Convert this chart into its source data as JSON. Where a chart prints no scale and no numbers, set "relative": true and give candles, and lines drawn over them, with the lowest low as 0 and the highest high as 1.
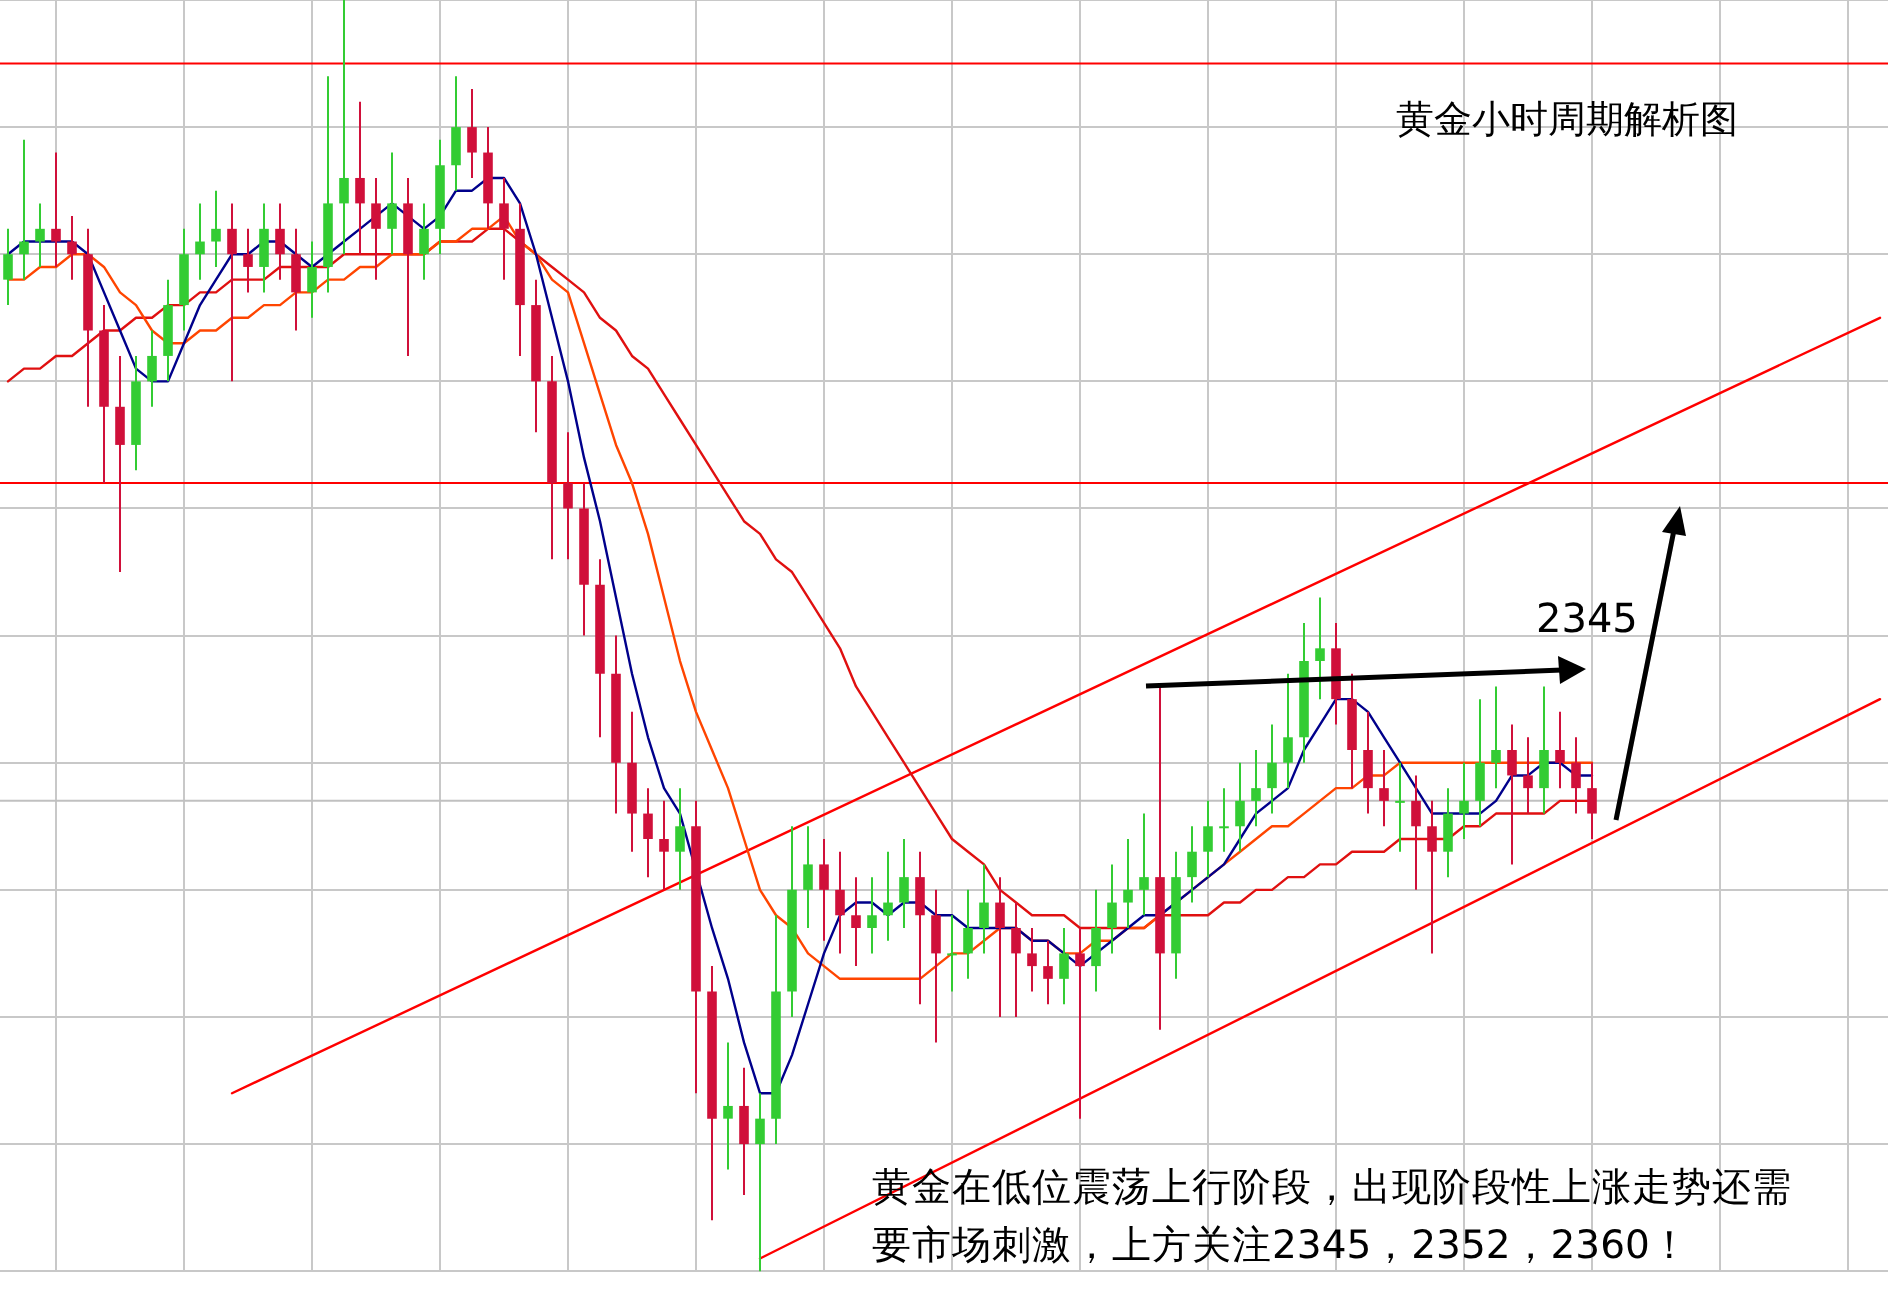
{
  "chart_data": {
    "type": "candlestick",
    "title": "黄金小时周期解析图",
    "relative": true,
    "grid": true,
    "legend": false,
    "marker": "none",
    "annotations": [
      "2345",
      "黄金在低位震荡上行阶段，出现阶段性上涨走势还需要市场刺激，上方关注2345，2352，2360！"
    ],
    "categories": [
      null,
      null,
      null,
      null,
      null,
      null,
      null,
      null,
      null,
      null,
      null,
      null,
      null,
      null,
      null,
      null,
      null,
      null,
      null,
      null,
      null,
      null,
      null,
      null,
      null,
      null,
      null,
      null,
      null,
      null,
      null,
      null,
      null,
      null,
      null,
      null,
      null,
      null,
      null,
      null,
      null,
      null,
      null,
      null,
      null,
      null,
      null,
      null,
      null,
      null,
      null,
      null,
      null,
      null,
      null,
      null,
      null,
      null,
      null,
      null,
      null,
      null,
      null,
      null,
      null,
      null,
      null,
      null,
      null,
      null,
      null,
      null,
      null,
      null,
      null,
      null,
      null,
      null,
      null,
      null,
      null,
      null,
      null,
      null,
      null,
      null,
      null,
      null,
      null,
      null,
      null,
      null,
      null,
      null,
      null,
      null,
      null,
      null,
      null,
      null,
      null,
      null,
      null,
      null,
      null,
      null,
      null,
      null,
      null,
      null,
      null,
      null,
      null,
      null,
      null,
      null,
      null,
      null
    ],
    "ohlc": [
      [
        0.78,
        0.82,
        0.76,
        0.8
      ],
      [
        0.8,
        0.89,
        0.78,
        0.81
      ],
      [
        0.81,
        0.84,
        0.79,
        0.82
      ],
      [
        0.82,
        0.88,
        0.79,
        0.81
      ],
      [
        0.81,
        0.83,
        0.78,
        0.8
      ],
      [
        0.8,
        0.82,
        0.68,
        0.74
      ],
      [
        0.74,
        0.76,
        0.62,
        0.68
      ],
      [
        0.68,
        0.72,
        0.55,
        0.65
      ],
      [
        0.65,
        0.72,
        0.63,
        0.7
      ],
      [
        0.7,
        0.74,
        0.68,
        0.72
      ],
      [
        0.72,
        0.78,
        0.7,
        0.76
      ],
      [
        0.76,
        0.82,
        0.74,
        0.8
      ],
      [
        0.8,
        0.84,
        0.78,
        0.81
      ],
      [
        0.81,
        0.85,
        0.79,
        0.82
      ],
      [
        0.82,
        0.84,
        0.7,
        0.8
      ],
      [
        0.8,
        0.82,
        0.77,
        0.79
      ],
      [
        0.79,
        0.84,
        0.77,
        0.82
      ],
      [
        0.82,
        0.84,
        0.78,
        0.8
      ],
      [
        0.8,
        0.82,
        0.74,
        0.77
      ],
      [
        0.77,
        0.81,
        0.75,
        0.79
      ],
      [
        0.79,
        0.94,
        0.77,
        0.84
      ],
      [
        0.84,
        1.0,
        0.8,
        0.86
      ],
      [
        0.86,
        0.92,
        0.8,
        0.84
      ],
      [
        0.84,
        0.86,
        0.78,
        0.82
      ],
      [
        0.82,
        0.88,
        0.8,
        0.84
      ],
      [
        0.84,
        0.86,
        0.72,
        0.8
      ],
      [
        0.8,
        0.84,
        0.78,
        0.82
      ],
      [
        0.82,
        0.89,
        0.8,
        0.87
      ],
      [
        0.87,
        0.94,
        0.85,
        0.9
      ],
      [
        0.9,
        0.93,
        0.86,
        0.88
      ],
      [
        0.88,
        0.9,
        0.82,
        0.84
      ],
      [
        0.84,
        0.86,
        0.78,
        0.82
      ],
      [
        0.82,
        0.84,
        0.72,
        0.76
      ],
      [
        0.76,
        0.78,
        0.66,
        0.7
      ],
      [
        0.7,
        0.72,
        0.56,
        0.62
      ],
      [
        0.62,
        0.66,
        0.56,
        0.6
      ],
      [
        0.6,
        0.62,
        0.5,
        0.54
      ],
      [
        0.54,
        0.56,
        0.42,
        0.47
      ],
      [
        0.47,
        0.5,
        0.36,
        0.4
      ],
      [
        0.4,
        0.44,
        0.33,
        0.36
      ],
      [
        0.36,
        0.38,
        0.31,
        0.34
      ],
      [
        0.34,
        0.37,
        0.3,
        0.33
      ],
      [
        0.33,
        0.38,
        0.3,
        0.35
      ],
      [
        0.35,
        0.37,
        0.14,
        0.22
      ],
      [
        0.22,
        0.24,
        0.04,
        0.12
      ],
      [
        0.12,
        0.18,
        0.08,
        0.13
      ],
      [
        0.13,
        0.16,
        0.06,
        0.1
      ],
      [
        0.1,
        0.14,
        0.0,
        0.12
      ],
      [
        0.12,
        0.28,
        0.1,
        0.22
      ],
      [
        0.22,
        0.35,
        0.2,
        0.3
      ],
      [
        0.3,
        0.35,
        0.27,
        0.32
      ],
      [
        0.32,
        0.34,
        0.26,
        0.3
      ],
      [
        0.3,
        0.33,
        0.25,
        0.28
      ],
      [
        0.28,
        0.31,
        0.24,
        0.27
      ],
      [
        0.27,
        0.31,
        0.25,
        0.28
      ],
      [
        0.28,
        0.33,
        0.26,
        0.29
      ],
      [
        0.29,
        0.34,
        0.27,
        0.31
      ],
      [
        0.31,
        0.33,
        0.21,
        0.28
      ],
      [
        0.28,
        0.3,
        0.18,
        0.25
      ],
      [
        0.25,
        0.28,
        0.22,
        0.25
      ],
      [
        0.25,
        0.3,
        0.23,
        0.27
      ],
      [
        0.27,
        0.32,
        0.25,
        0.29
      ],
      [
        0.29,
        0.31,
        0.2,
        0.27
      ],
      [
        0.27,
        0.29,
        0.2,
        0.25
      ],
      [
        0.25,
        0.27,
        0.22,
        0.24
      ],
      [
        0.24,
        0.26,
        0.21,
        0.23
      ],
      [
        0.23,
        0.27,
        0.21,
        0.25
      ],
      [
        0.25,
        0.27,
        0.12,
        0.24
      ],
      [
        0.24,
        0.3,
        0.22,
        0.27
      ],
      [
        0.27,
        0.32,
        0.25,
        0.29
      ],
      [
        0.29,
        0.34,
        0.27,
        0.3
      ],
      [
        0.3,
        0.36,
        0.28,
        0.31
      ],
      [
        0.31,
        0.46,
        0.19,
        0.25
      ],
      [
        0.25,
        0.33,
        0.23,
        0.31
      ],
      [
        0.31,
        0.35,
        0.29,
        0.33
      ],
      [
        0.33,
        0.37,
        0.31,
        0.35
      ],
      [
        0.35,
        0.38,
        0.33,
        0.35
      ],
      [
        0.35,
        0.4,
        0.33,
        0.37
      ],
      [
        0.37,
        0.41,
        0.35,
        0.38
      ],
      [
        0.38,
        0.43,
        0.36,
        0.4
      ],
      [
        0.4,
        0.47,
        0.38,
        0.42
      ],
      [
        0.42,
        0.51,
        0.4,
        0.48
      ],
      [
        0.48,
        0.53,
        0.45,
        0.49
      ],
      [
        0.49,
        0.51,
        0.43,
        0.45
      ],
      [
        0.45,
        0.47,
        0.38,
        0.41
      ],
      [
        0.41,
        0.44,
        0.36,
        0.38
      ],
      [
        0.38,
        0.41,
        0.35,
        0.37
      ],
      [
        0.37,
        0.4,
        0.33,
        0.37
      ],
      [
        0.37,
        0.39,
        0.3,
        0.35
      ],
      [
        0.35,
        0.37,
        0.25,
        0.33
      ],
      [
        0.33,
        0.38,
        0.31,
        0.36
      ],
      [
        0.36,
        0.4,
        0.34,
        0.37
      ],
      [
        0.37,
        0.45,
        0.35,
        0.4
      ],
      [
        0.4,
        0.46,
        0.38,
        0.41
      ],
      [
        0.41,
        0.43,
        0.32,
        0.39
      ],
      [
        0.39,
        0.42,
        0.36,
        0.38
      ],
      [
        0.38,
        0.46,
        0.36,
        0.41
      ],
      [
        0.41,
        0.44,
        0.38,
        0.4
      ],
      [
        0.4,
        0.42,
        0.36,
        0.38
      ],
      [
        0.38,
        0.4,
        0.34,
        0.36
      ],
      null,
      null,
      null,
      null,
      null,
      null,
      null,
      null,
      null,
      null,
      null,
      null,
      null,
      null,
      null,
      null,
      null,
      null
    ],
    "colors": [
      "#33cc33",
      "#33cc33",
      "#33cc33",
      "#d0103a",
      "#d0103a",
      "#d0103a",
      "#d0103a",
      "#d0103a",
      "#33cc33",
      "#33cc33",
      "#33cc33",
      "#33cc33",
      "#33cc33",
      "#33cc33",
      "#d0103a",
      "#d0103a",
      "#33cc33",
      "#d0103a",
      "#d0103a",
      "#33cc33",
      "#33cc33",
      "#33cc33",
      "#d0103a",
      "#d0103a",
      "#33cc33",
      "#d0103a",
      "#33cc33",
      "#33cc33",
      "#33cc33",
      "#d0103a",
      "#d0103a",
      "#d0103a",
      "#d0103a",
      "#d0103a",
      "#d0103a",
      "#d0103a",
      "#d0103a",
      "#d0103a",
      "#d0103a",
      "#d0103a",
      "#d0103a",
      "#d0103a",
      "#33cc33",
      "#d0103a",
      "#d0103a",
      "#33cc33",
      "#d0103a",
      "#33cc33",
      "#33cc33",
      "#33cc33",
      "#33cc33",
      "#d0103a",
      "#d0103a",
      "#d0103a",
      "#33cc33",
      "#33cc33",
      "#33cc33",
      "#d0103a",
      "#d0103a",
      "#33cc33",
      "#33cc33",
      "#33cc33",
      "#d0103a",
      "#d0103a",
      "#d0103a",
      "#d0103a",
      "#33cc33",
      "#d0103a",
      "#33cc33",
      "#33cc33",
      "#33cc33",
      "#33cc33",
      "#d0103a",
      "#33cc33",
      "#33cc33",
      "#33cc33",
      "#33cc33",
      "#33cc33",
      "#33cc33",
      "#33cc33",
      "#33cc33",
      "#33cc33",
      "#33cc33",
      "#d0103a",
      "#d0103a",
      "#d0103a",
      "#d0103a",
      "#33cc33",
      "#d0103a",
      "#d0103a",
      "#33cc33",
      "#33cc33",
      "#33cc33",
      "#33cc33",
      "#d0103a",
      "#d0103a",
      "#33cc33",
      "#d0103a",
      "#d0103a",
      "#d0103a",
      null,
      null,
      null,
      null,
      null,
      null,
      null,
      null,
      null,
      null,
      null,
      null,
      null,
      null,
      null,
      null,
      null,
      null
    ],
    "series": [
      {
        "type": "line",
        "color": "#00008b",
        "values": [
          0.8,
          0.81,
          0.81,
          0.81,
          0.81,
          0.8,
          0.77,
          0.74,
          0.71,
          0.7,
          0.7,
          0.73,
          0.76,
          0.78,
          0.8,
          0.8,
          0.81,
          0.81,
          0.8,
          0.79,
          0.8,
          0.81,
          0.82,
          0.83,
          0.84,
          0.83,
          0.82,
          0.83,
          0.85,
          0.85,
          0.86,
          0.86,
          0.84,
          0.8,
          0.75,
          0.7,
          0.64,
          0.59,
          0.53,
          0.47,
          0.42,
          0.38,
          0.36,
          null,
          0.27,
          0.23,
          0.18,
          0.14,
          0.14,
          0.17,
          0.21,
          0.25,
          0.28,
          0.29,
          0.29,
          0.28,
          0.29,
          0.29,
          0.28,
          0.28,
          0.27,
          0.27,
          0.27,
          0.27,
          0.26,
          0.26,
          0.25,
          0.24,
          0.25,
          0.26,
          0.27,
          0.28,
          0.28,
          0.29,
          0.3,
          0.31,
          0.32,
          0.34,
          0.36,
          0.37,
          0.38,
          0.41,
          0.43,
          0.45,
          0.45,
          0.44,
          0.42,
          0.4,
          0.38,
          0.36,
          0.36,
          0.36,
          0.36,
          0.37,
          0.39,
          0.39,
          0.4,
          0.4,
          0.39,
          0.39,
          null,
          null,
          null,
          null,
          null,
          null,
          null,
          null,
          null,
          null,
          null,
          null,
          null,
          null,
          null,
          null,
          null,
          null
        ]
      },
      {
        "type": "line",
        "color": "#ff4500",
        "values": [
          0.78,
          0.78,
          0.79,
          0.79,
          0.8,
          0.8,
          0.79,
          0.77,
          0.76,
          0.74,
          0.73,
          0.73,
          0.74,
          0.74,
          0.75,
          0.75,
          0.76,
          0.76,
          0.77,
          0.77,
          0.78,
          0.78,
          0.79,
          0.79,
          0.8,
          0.8,
          0.8,
          0.81,
          0.81,
          0.82,
          0.82,
          0.83,
          0.81,
          0.8,
          0.78,
          0.77,
          0.73,
          0.69,
          0.65,
          0.62,
          0.58,
          0.53,
          0.48,
          0.44,
          0.41,
          0.38,
          0.34,
          0.3,
          0.28,
          0.27,
          0.25,
          0.24,
          0.23,
          0.23,
          0.23,
          0.23,
          0.23,
          0.23,
          0.24,
          0.25,
          0.25,
          0.26,
          0.27,
          0.27,
          0.26,
          0.26,
          0.25,
          0.25,
          0.26,
          0.26,
          0.27,
          0.27,
          0.28,
          null,
          0.3,
          null,
          0.32,
          0.33,
          0.34,
          0.35,
          0.35,
          0.36,
          0.37,
          0.38,
          0.38,
          0.39,
          0.39,
          0.4,
          0.4,
          0.4,
          0.4,
          0.4,
          0.4,
          0.4,
          0.4,
          0.4,
          0.4,
          0.4,
          0.4,
          0.4,
          null,
          null,
          null,
          null,
          null,
          null,
          null,
          null,
          null,
          null,
          null,
          null,
          null,
          null,
          null,
          null,
          null,
          null
        ]
      },
      {
        "type": "line",
        "color": "#e01010",
        "values": [
          0.7,
          0.71,
          0.71,
          0.72,
          0.72,
          0.73,
          0.74,
          0.74,
          0.75,
          0.75,
          0.76,
          0.76,
          0.77,
          0.77,
          0.78,
          0.78,
          0.78,
          0.79,
          0.79,
          0.79,
          0.79,
          0.8,
          0.8,
          0.8,
          0.8,
          0.8,
          0.8,
          0.81,
          0.81,
          0.81,
          0.82,
          0.82,
          0.81,
          0.8,
          0.79,
          0.78,
          0.77,
          0.75,
          0.74,
          0.72,
          0.71,
          0.69,
          0.67,
          0.65,
          0.63,
          0.61,
          0.59,
          0.58,
          0.56,
          0.55,
          0.53,
          0.51,
          0.49,
          0.46,
          0.44,
          0.42,
          0.4,
          0.38,
          0.36,
          0.34,
          0.33,
          0.32,
          0.3,
          0.29,
          0.28,
          0.28,
          0.28,
          0.27,
          0.27,
          0.27,
          0.27,
          0.27,
          0.28,
          0.28,
          0.28,
          0.28,
          0.29,
          0.29,
          0.3,
          0.3,
          0.31,
          0.31,
          0.32,
          0.32,
          0.33,
          0.33,
          0.33,
          0.34,
          0.34,
          0.34,
          0.34,
          0.35,
          0.35,
          0.36,
          0.36,
          0.36,
          0.36,
          0.37,
          0.37,
          0.37,
          null,
          null,
          null,
          null,
          null,
          null,
          null,
          null,
          null,
          null,
          null,
          null,
          null,
          null,
          null,
          null,
          null,
          null
        ]
      },
      {
        "type": "line",
        "color": "#ff0000",
        "values": [
          null,
          null,
          null,
          null,
          null,
          null,
          null,
          null,
          null,
          null,
          null,
          null,
          null,
          null,
          0.14,
          null,
          null,
          null,
          null,
          null,
          null,
          null,
          null,
          null,
          null,
          null,
          null,
          null,
          null,
          null,
          null,
          null,
          null,
          null,
          null,
          null,
          null,
          null,
          null,
          null,
          null,
          null,
          null,
          null,
          null,
          null,
          null,
          null,
          null,
          null,
          null,
          null,
          null,
          null,
          null,
          null,
          null,
          null,
          null,
          null,
          null,
          null,
          null,
          null,
          null,
          null,
          null,
          null,
          null,
          null,
          null,
          null,
          null,
          null,
          null,
          null,
          null,
          null,
          null,
          null,
          null,
          null,
          null,
          null,
          null,
          null,
          null,
          null,
          null,
          null,
          null,
          null,
          null,
          null,
          null,
          null,
          null,
          null,
          null,
          null,
          null,
          null,
          null,
          null,
          null,
          null,
          null,
          null,
          null,
          null,
          null,
          null,
          null,
          null,
          null,
          null,
          null,
          0.75
        ]
      },
      {
        "type": "line",
        "color": "#ff0000",
        "values": [
          null,
          null,
          null,
          null,
          null,
          null,
          null,
          null,
          null,
          null,
          null,
          null,
          null,
          null,
          null,
          null,
          null,
          null,
          null,
          null,
          null,
          null,
          null,
          null,
          null,
          null,
          null,
          null,
          null,
          null,
          null,
          null,
          null,
          null,
          null,
          null,
          null,
          null,
          null,
          null,
          null,
          null,
          null,
          null,
          null,
          null,
          null,
          0.01,
          null,
          null,
          null,
          null,
          null,
          null,
          null,
          null,
          null,
          null,
          null,
          null,
          null,
          null,
          null,
          null,
          null,
          null,
          null,
          null,
          null,
          null,
          null,
          null,
          null,
          null,
          null,
          null,
          null,
          null,
          null,
          null,
          null,
          null,
          null,
          null,
          null,
          null,
          null,
          null,
          null,
          null,
          null,
          null,
          null,
          null,
          null,
          null,
          null,
          null,
          null,
          null,
          null,
          null,
          null,
          null,
          null,
          null,
          null,
          null,
          null,
          null,
          null,
          null,
          null,
          null,
          null,
          null,
          null,
          0.45
        ]
      }
    ],
    "ref_lines": [
      {
        "axis": "y",
        "value": 0.95,
        "color": "#ff0000"
      },
      {
        "axis": "y",
        "value": 0.62,
        "color": "#ff0000"
      },
      {
        "axis": "y",
        "value": 0.37,
        "color": "#c0c0c0"
      }
    ]
  }
}
